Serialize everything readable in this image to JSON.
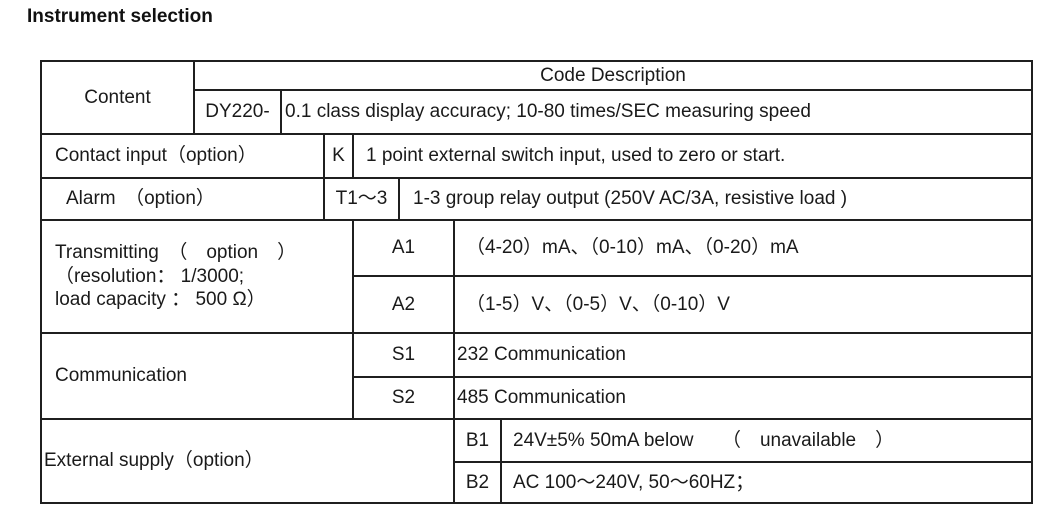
{
  "page": {
    "title": "Instrument selection"
  },
  "table": {
    "content_label": "Content",
    "code_description_header": "Code Description",
    "model": {
      "code": "DY220-",
      "description": "0.1 class display accuracy; 10-80 times/SEC measuring speed"
    },
    "contact_input": {
      "label": "Contact input（option）",
      "code": "K",
      "description": "1 point external switch input, used to zero or start."
    },
    "alarm": {
      "label": "Alarm　（option）",
      "code": "T1～3",
      "description": "1-3 group relay output (250V AC/3A, resistive load )"
    },
    "transmitting": {
      "label": "Transmitting　（　option　）\n（resolution： 1/3000;\nload capacity ： 500 Ω）",
      "options": [
        {
          "code": "A1",
          "description": "（4-20）mA、（0-10）mA、（0-20）mA"
        },
        {
          "code": "A2",
          "description": "（1-5）V、（0-5）V、（0-10）V"
        }
      ]
    },
    "communication": {
      "label": "Communication",
      "options": [
        {
          "code": "S1",
          "description": "232 Communication"
        },
        {
          "code": "S2",
          "description": "485 Communication"
        }
      ]
    },
    "external_supply": {
      "label": "External supply（option）",
      "options": [
        {
          "code": "B1",
          "description": "24V±5% 50mA below　　（　unavailable　）"
        },
        {
          "code": "B2",
          "description": "AC 100～240V, 50～60HZ；"
        }
      ]
    },
    "colors": {
      "border": "#1f1f1f",
      "text": "#1a1a1a",
      "background": "#ffffff"
    }
  }
}
